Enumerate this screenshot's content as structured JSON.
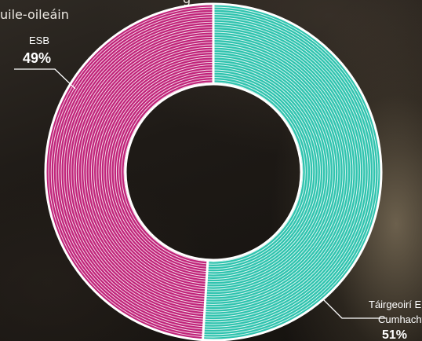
{
  "title": {
    "line1": "g",
    "line2": "uile-oileáin"
  },
  "colors": {
    "teal": "#2fc3ae",
    "magenta": "#c0247a",
    "stripe": "#ffffff",
    "leader": "#ffffff"
  },
  "chart_data": {
    "type": "pie",
    "variant": "donut",
    "series": [
      {
        "name": "ESB",
        "value": 49,
        "label": "49%",
        "color": "#c0247a"
      },
      {
        "name": "Táirgeoirí E Cumhachy",
        "name_lines": [
          "Táirgeoirí E",
          "Cumhachy"
        ],
        "value": 51,
        "label": "51%",
        "color": "#2fc3ae"
      }
    ],
    "legend": "none",
    "direction": "clockwise-from-top"
  }
}
